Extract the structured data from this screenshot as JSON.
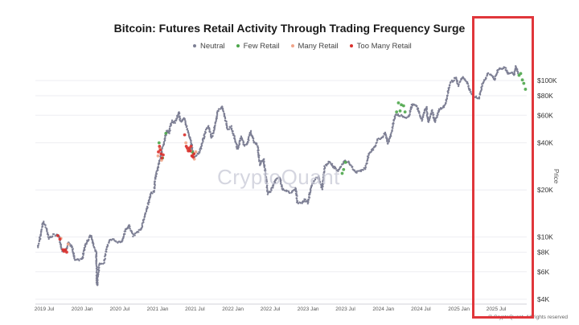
{
  "chart_data": {
    "type": "scatter",
    "title": "Bitcoin: Futures Retail Activity Through Trading Frequency Surge",
    "ylabel": "Price",
    "y_scale": "log",
    "ylim": [
      4000,
      130000
    ],
    "xlim": [
      "2019-05",
      "2025-11"
    ],
    "x_ticks": [
      "2019 Jul",
      "2020 Jan",
      "2020 Jul",
      "2021 Jan",
      "2021 Jul",
      "2022 Jan",
      "2022 Jul",
      "2023 Jan",
      "2023 Jul",
      "2024 Jan",
      "2024 Jul",
      "2025 Jan",
      "2025 Jul"
    ],
    "y_ticks": [
      {
        "value": 100000,
        "label": "$100K"
      },
      {
        "value": 80000,
        "label": "$80K"
      },
      {
        "value": 60000,
        "label": "$60K"
      },
      {
        "value": 40000,
        "label": "$40K"
      },
      {
        "value": 20000,
        "label": "$20K"
      },
      {
        "value": 10000,
        "label": "$10K"
      },
      {
        "value": 8000,
        "label": "$8K"
      },
      {
        "value": 6000,
        "label": "$6K"
      },
      {
        "value": 4000,
        "label": "$4K"
      }
    ],
    "grid": true,
    "legend_position": "top-center",
    "series": [
      {
        "name": "Neutral",
        "color": "#7d7f94",
        "points": [
          [
            "2019-06-01",
            8600
          ],
          [
            "2019-06-15",
            10500
          ],
          [
            "2019-06-26",
            12500
          ],
          [
            "2019-07-10",
            11500
          ],
          [
            "2019-07-25",
            9800
          ],
          [
            "2019-08-15",
            10300
          ],
          [
            "2019-09-10",
            10200
          ],
          [
            "2019-09-26",
            8200
          ],
          [
            "2019-10-15",
            8300
          ],
          [
            "2019-10-26",
            9300
          ],
          [
            "2019-11-15",
            8500
          ],
          [
            "2019-11-25",
            7200
          ],
          [
            "2019-12-15",
            7100
          ],
          [
            "2020-01-01",
            7200
          ],
          [
            "2020-01-15",
            8800
          ],
          [
            "2020-02-12",
            10300
          ],
          [
            "2020-02-28",
            8600
          ],
          [
            "2020-03-10",
            7900
          ],
          [
            "2020-03-13",
            4900
          ],
          [
            "2020-03-25",
            6700
          ],
          [
            "2020-04-15",
            6800
          ],
          [
            "2020-04-30",
            8700
          ],
          [
            "2020-05-15",
            9500
          ],
          [
            "2020-06-01",
            9600
          ],
          [
            "2020-06-20",
            9300
          ],
          [
            "2020-07-10",
            9250
          ],
          [
            "2020-07-28",
            11000
          ],
          [
            "2020-08-15",
            11800
          ],
          [
            "2020-09-05",
            10200
          ],
          [
            "2020-09-25",
            10700
          ],
          [
            "2020-10-15",
            11400
          ],
          [
            "2020-10-31",
            13800
          ],
          [
            "2020-11-15",
            16000
          ],
          [
            "2020-11-30",
            19000
          ],
          [
            "2020-12-15",
            19500
          ],
          [
            "2020-12-20",
            23500
          ],
          [
            "2021-02-15",
            48000
          ],
          [
            "2021-02-25",
            46000
          ],
          [
            "2021-03-10",
            55000
          ],
          [
            "2021-03-25",
            54000
          ],
          [
            "2021-04-05",
            58000
          ],
          [
            "2021-04-14",
            63000
          ],
          [
            "2021-04-20",
            56000
          ],
          [
            "2021-04-28",
            54000
          ],
          [
            "2021-05-08",
            58000
          ],
          [
            "2021-06-15",
            39000
          ],
          [
            "2021-06-25",
            32000
          ],
          [
            "2021-07-10",
            33500
          ],
          [
            "2021-07-25",
            35000
          ],
          [
            "2021-08-05",
            39500
          ],
          [
            "2021-08-20",
            47000
          ],
          [
            "2021-09-05",
            51000
          ],
          [
            "2021-09-20",
            43000
          ],
          [
            "2021-10-05",
            50000
          ],
          [
            "2021-10-20",
            64000
          ],
          [
            "2021-11-10",
            68000
          ],
          [
            "2021-11-25",
            57000
          ],
          [
            "2021-12-05",
            49000
          ],
          [
            "2021-12-25",
            50500
          ],
          [
            "2022-01-10",
            42000
          ],
          [
            "2022-01-24",
            36500
          ],
          [
            "2022-02-10",
            44000
          ],
          [
            "2022-02-25",
            38500
          ],
          [
            "2022-03-10",
            39000
          ],
          [
            "2022-03-28",
            47000
          ],
          [
            "2022-04-15",
            40000
          ],
          [
            "2022-05-01",
            38500
          ],
          [
            "2022-05-12",
            29000
          ],
          [
            "2022-05-30",
            31500
          ],
          [
            "2022-06-14",
            22000
          ],
          [
            "2022-06-18",
            19000
          ],
          [
            "2022-07-01",
            19500
          ],
          [
            "2022-07-15",
            21000
          ],
          [
            "2022-07-30",
            23500
          ],
          [
            "2022-08-15",
            24200
          ],
          [
            "2022-09-01",
            20000
          ],
          [
            "2022-09-15",
            19700
          ],
          [
            "2022-10-10",
            19100
          ],
          [
            "2022-11-01",
            20500
          ],
          [
            "2022-11-10",
            16500
          ],
          [
            "2022-11-28",
            16400
          ],
          [
            "2022-12-15",
            17300
          ],
          [
            "2022-12-31",
            16500
          ],
          [
            "2023-01-15",
            21000
          ],
          [
            "2023-02-01",
            23000
          ],
          [
            "2023-02-20",
            24500
          ],
          [
            "2023-03-10",
            20200
          ],
          [
            "2023-03-22",
            28000
          ],
          [
            "2023-04-14",
            30500
          ],
          [
            "2023-05-01",
            28500
          ],
          [
            "2023-05-25",
            26500
          ],
          [
            "2023-06-25",
            30500
          ],
          [
            "2023-07-15",
            30200
          ],
          [
            "2023-08-20",
            26000
          ],
          [
            "2023-09-15",
            26600
          ],
          [
            "2023-10-05",
            27500
          ],
          [
            "2023-10-24",
            34500
          ],
          [
            "2023-11-15",
            36500
          ],
          [
            "2023-12-05",
            42000
          ],
          [
            "2023-12-25",
            43000
          ],
          [
            "2024-01-10",
            46500
          ],
          [
            "2024-01-23",
            39500
          ],
          [
            "2024-02-10",
            47000
          ],
          [
            "2024-02-28",
            61000
          ],
          [
            "2024-05-01",
            58000
          ],
          [
            "2024-05-20",
            70000
          ],
          [
            "2024-06-10",
            69000
          ],
          [
            "2024-07-05",
            56000
          ],
          [
            "2024-07-28",
            68000
          ],
          [
            "2024-08-05",
            54000
          ],
          [
            "2024-08-25",
            64000
          ],
          [
            "2024-09-06",
            54000
          ],
          [
            "2024-09-28",
            65500
          ],
          [
            "2024-10-15",
            67000
          ],
          [
            "2024-10-30",
            72000
          ],
          [
            "2024-11-12",
            88000
          ],
          [
            "2024-11-22",
            98500
          ],
          [
            "2024-12-05",
            100000
          ],
          [
            "2024-12-17",
            106000
          ],
          [
            "2024-12-30",
            93000
          ],
          [
            "2025-01-20",
            106000
          ],
          [
            "2025-02-10",
            97000
          ],
          [
            "2025-02-28",
            84000
          ],
          [
            "2025-03-10",
            80000
          ],
          [
            "2025-04-08",
            76500
          ],
          [
            "2025-04-25",
            94000
          ],
          [
            "2025-05-10",
            103000
          ],
          [
            "2025-05-22",
            111000
          ],
          [
            "2025-06-10",
            108000
          ],
          [
            "2025-06-22",
            101000
          ],
          [
            "2025-07-14",
            120000
          ],
          [
            "2025-07-28",
            118000
          ],
          [
            "2025-08-14",
            121000
          ],
          [
            "2025-08-25",
            111000
          ],
          [
            "2025-09-10",
            113000
          ],
          [
            "2025-09-25",
            109000
          ],
          [
            "2025-10-06",
            124000
          ],
          [
            "2025-10-15",
            111000
          ]
        ]
      },
      {
        "name": "Few Retail",
        "color": "#4ca64a",
        "points": [
          [
            "2021-01-08",
            40000
          ],
          [
            "2021-01-25",
            32000
          ],
          [
            "2021-02-10",
            46000
          ],
          [
            "2021-06-05",
            36000
          ],
          [
            "2021-06-18",
            35000
          ],
          [
            "2021-06-24",
            34000
          ],
          [
            "2023-06-15",
            25500
          ],
          [
            "2023-06-22",
            27000
          ],
          [
            "2023-07-01",
            30000
          ],
          [
            "2024-03-05",
            63000
          ],
          [
            "2024-03-14",
            72000
          ],
          [
            "2024-03-22",
            64000
          ],
          [
            "2024-03-28",
            70000
          ],
          [
            "2024-04-08",
            69000
          ],
          [
            "2024-04-15",
            63000
          ],
          [
            "2025-10-20",
            108000
          ],
          [
            "2025-10-28",
            111000
          ],
          [
            "2025-11-05",
            101000
          ],
          [
            "2025-11-12",
            96000
          ],
          [
            "2025-11-20",
            88000
          ]
        ]
      },
      {
        "name": "Many Retail",
        "color": "#f0a58a",
        "points": [
          [
            "2019-09-20",
            9800
          ],
          [
            "2019-10-25",
            9000
          ],
          [
            "2021-01-03",
            33000
          ],
          [
            "2021-01-12",
            37000
          ],
          [
            "2021-01-20",
            31000
          ],
          [
            "2021-05-18",
            40000
          ],
          [
            "2021-05-28",
            36000
          ],
          [
            "2021-06-10",
            35500
          ],
          [
            "2021-06-20",
            33000
          ],
          [
            "2021-06-28",
            31500
          ],
          [
            "2021-07-05",
            35000
          ]
        ]
      },
      {
        "name": "Too Many Retail",
        "color": "#d9302c",
        "points": [
          [
            "2019-09-05",
            10200
          ],
          [
            "2019-09-15",
            9700
          ],
          [
            "2019-09-30",
            8300
          ],
          [
            "2019-10-05",
            8100
          ],
          [
            "2019-10-12",
            8300
          ],
          [
            "2019-10-18",
            8000
          ],
          [
            "2021-01-05",
            35000
          ],
          [
            "2021-01-10",
            38000
          ],
          [
            "2021-01-14",
            36000
          ],
          [
            "2021-01-18",
            34000
          ],
          [
            "2021-01-22",
            32000
          ],
          [
            "2021-01-28",
            33500
          ],
          [
            "2021-05-12",
            45000
          ],
          [
            "2021-05-20",
            38000
          ],
          [
            "2021-05-25",
            37000
          ],
          [
            "2021-05-30",
            35500
          ],
          [
            "2021-06-04",
            37000
          ],
          [
            "2021-06-08",
            35500
          ],
          [
            "2021-06-12",
            38000
          ],
          [
            "2021-06-16",
            33000
          ],
          [
            "2021-06-22",
            32500
          ],
          [
            "2021-06-26",
            34000
          ]
        ]
      }
    ]
  },
  "watermark": "CryptoQuant",
  "copyright": "© CryptoQuant. All rights reserved"
}
